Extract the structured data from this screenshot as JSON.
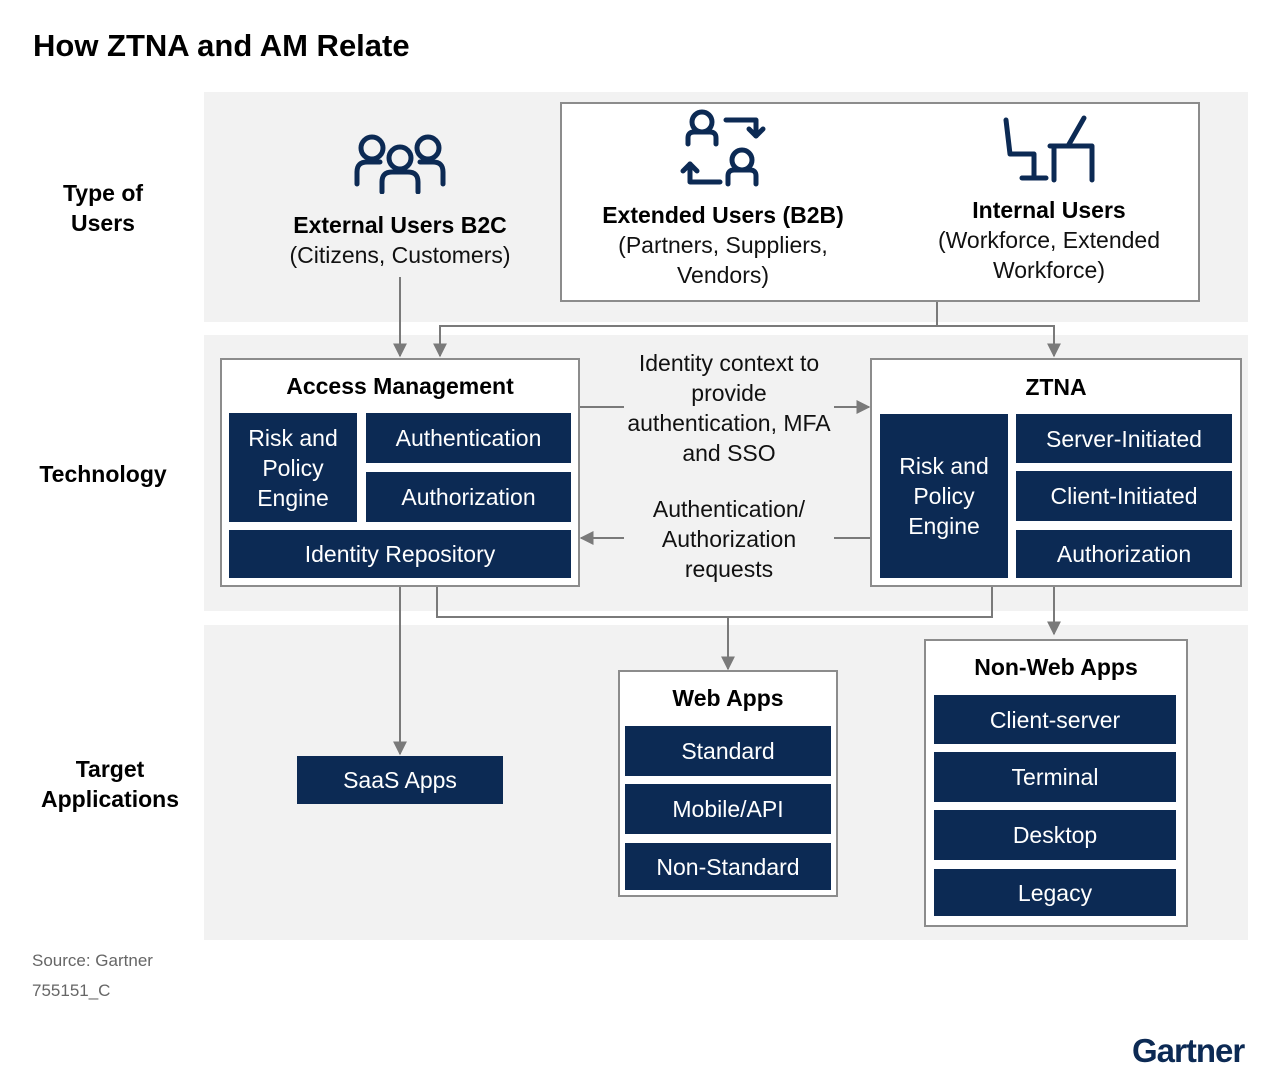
{
  "title": "How ZTNA and AM Relate",
  "rows": {
    "users": "Type of Users",
    "technology": "Technology",
    "targets": "Target Applications"
  },
  "users": {
    "b2c": {
      "title": "External Users B2C",
      "subtitle": "(Citizens, Customers)"
    },
    "b2b": {
      "title": "Extended Users (B2B)",
      "subtitle": "(Partners, Suppliers, Vendors)"
    },
    "internal": {
      "title": "Internal Users",
      "subtitle": "(Workforce, Extended Workforce)"
    }
  },
  "access_management": {
    "title": "Access Management",
    "risk": "Risk and Policy Engine",
    "authentication": "Authentication",
    "authorization": "Authorization",
    "identity": "Identity Repository"
  },
  "ztna": {
    "title": "ZTNA",
    "risk": "Risk and Policy Engine",
    "server": "Server-Initiated",
    "client": "Client-Initiated",
    "authorization": "Authorization"
  },
  "flows": {
    "identity_context": "Identity context to provide authentication, MFA and SSO",
    "auth_requests": "Authentication/ Authorization requests"
  },
  "targets": {
    "saas": "SaaS Apps",
    "web": {
      "title": "Web Apps",
      "items": [
        "Standard",
        "Mobile/API",
        "Non-Standard"
      ]
    },
    "nonweb": {
      "title": "Non-Web Apps",
      "items": [
        "Client-server",
        "Terminal",
        "Desktop",
        "Legacy"
      ]
    }
  },
  "source": "Source: Gartner",
  "doc_id": "755151_C",
  "logo": "Gartner",
  "colors": {
    "navy": "#0c2a54",
    "band": "#f2f2f2",
    "border": "#8c8c8c",
    "arrow": "#7a7a7a"
  }
}
